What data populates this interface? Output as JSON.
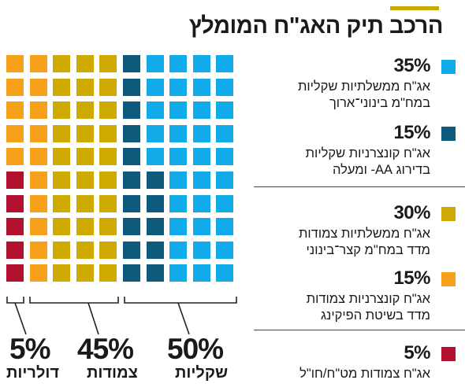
{
  "title": "הרכב תיק האג\"ח המומלץ",
  "colors": {
    "accent": "#c9a800",
    "light_blue": "#12aae8",
    "dark_blue": "#0d5a7c",
    "gold": "#cfaa00",
    "orange": "#f6a01c",
    "red": "#b2102f"
  },
  "chart_data": {
    "type": "waffle",
    "total_cells": 100,
    "rows": 10,
    "cols": 10,
    "segments": [
      {
        "label": "אג\"ח ממשלתיות שקליות במח\"מ בינוני־ארוך",
        "value": 35,
        "color": "#12aae8"
      },
      {
        "label": "אג\"ח קונצרניות שקליות בדירוג AA- ומעלה",
        "value": 15,
        "color": "#0d5a7c"
      },
      {
        "label": "אג\"ח ממשלתיות צמודות מדד במח\"מ קצר־בינוני",
        "value": 30,
        "color": "#cfaa00"
      },
      {
        "label": "אג\"ח קונצרניות צמודות מדד בשיטת הפיקינג",
        "value": 15,
        "color": "#f6a01c"
      },
      {
        "label": "אג\"ח צמודות מט\"ח/חו\"ל",
        "value": 5,
        "color": "#b2102f"
      }
    ],
    "groups": [
      {
        "pct": "50%",
        "label": "שקליות",
        "value": 50
      },
      {
        "pct": "45%",
        "label": "צמודות",
        "value": 45
      },
      {
        "pct": "5%",
        "label": "דולריות",
        "value": 5
      }
    ]
  },
  "legend": [
    {
      "pct": "35%",
      "line1": "אג\"ח ממשלתיות שקליות",
      "line2": "במח\"מ בינוני־ארוך",
      "color": "#12aae8"
    },
    {
      "pct": "15%",
      "line1": "אג\"ח קונצרניות שקליות",
      "line2": "בדירוג AA- ומעלה",
      "color": "#0d5a7c"
    },
    {
      "pct": "30%",
      "line1": "אג\"ח ממשלתיות צמודות",
      "line2": "מדד במח\"מ קצר־בינוני",
      "color": "#cfaa00"
    },
    {
      "pct": "15%",
      "line1": "אג\"ח קונצרניות צמודות",
      "line2": "מדד בשיטת הפיקינג",
      "color": "#f6a01c"
    },
    {
      "pct": "5%",
      "line1": "אג\"ח צמודות מט\"ח/חו\"ל",
      "line2": "",
      "color": "#b2102f"
    }
  ]
}
